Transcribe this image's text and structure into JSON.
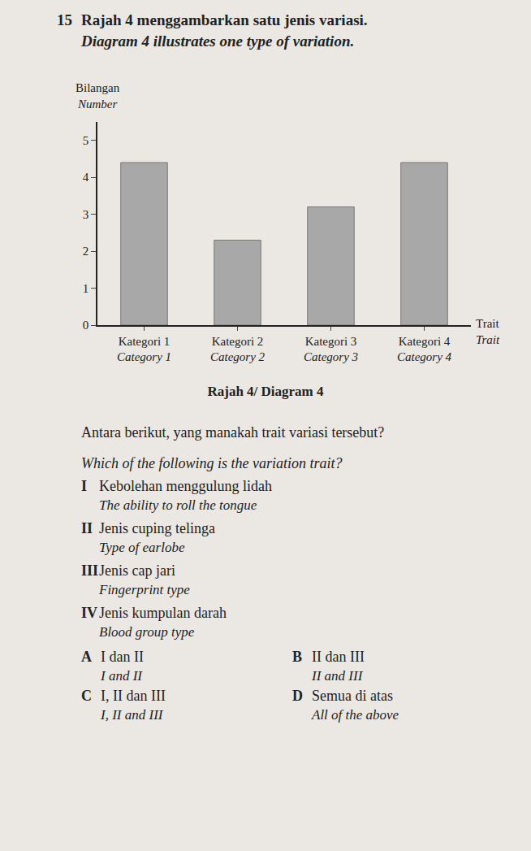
{
  "header": {
    "number": "15",
    "text": "Rajah 4 menggambarkan satu jenis variasi.",
    "text_en": "Diagram 4 illustrates one type of variation."
  },
  "chart_data": {
    "type": "bar",
    "y_label": "Bilangan",
    "y_label_en": "Number",
    "x_label": "Trait",
    "x_label_en": "Trait",
    "categories": [
      "Kategori 1",
      "Kategori 2",
      "Kategori 3",
      "Kategori 4"
    ],
    "categories_en": [
      "Category 1",
      "Category 2",
      "Category 3",
      "Category 4"
    ],
    "values": [
      4.4,
      2.3,
      3.2,
      4.4
    ],
    "color": "#a8a8a8",
    "ylim": [
      0,
      5.5
    ],
    "yticks": [
      0,
      1,
      2,
      3,
      4,
      5
    ],
    "grid": false
  },
  "caption": "Rajah 4/ Diagram 4",
  "question": {
    "text": "Antara berikut, yang manakah trait variasi tersebut?",
    "text_en": "Which of the following is the variation trait?"
  },
  "items": [
    {
      "numeral": "I",
      "text": "Kebolehan menggulung lidah",
      "text_en": "The ability to roll the tongue"
    },
    {
      "numeral": "II",
      "text": "Jenis cuping telinga",
      "text_en": "Type of earlobe"
    },
    {
      "numeral": "III",
      "text": "Jenis cap jari",
      "text_en": "Fingerprint type"
    },
    {
      "numeral": "IV",
      "text": "Jenis kumpulan darah",
      "text_en": "Blood group type"
    }
  ],
  "options": [
    {
      "letter": "A",
      "text": "I dan II",
      "text_en": "I and II"
    },
    {
      "letter": "B",
      "text": "II dan III",
      "text_en": "II and III"
    },
    {
      "letter": "C",
      "text": "I, II dan III",
      "text_en": "I, II and III"
    },
    {
      "letter": "D",
      "text": "Semua di atas",
      "text_en": "All of the above"
    }
  ]
}
